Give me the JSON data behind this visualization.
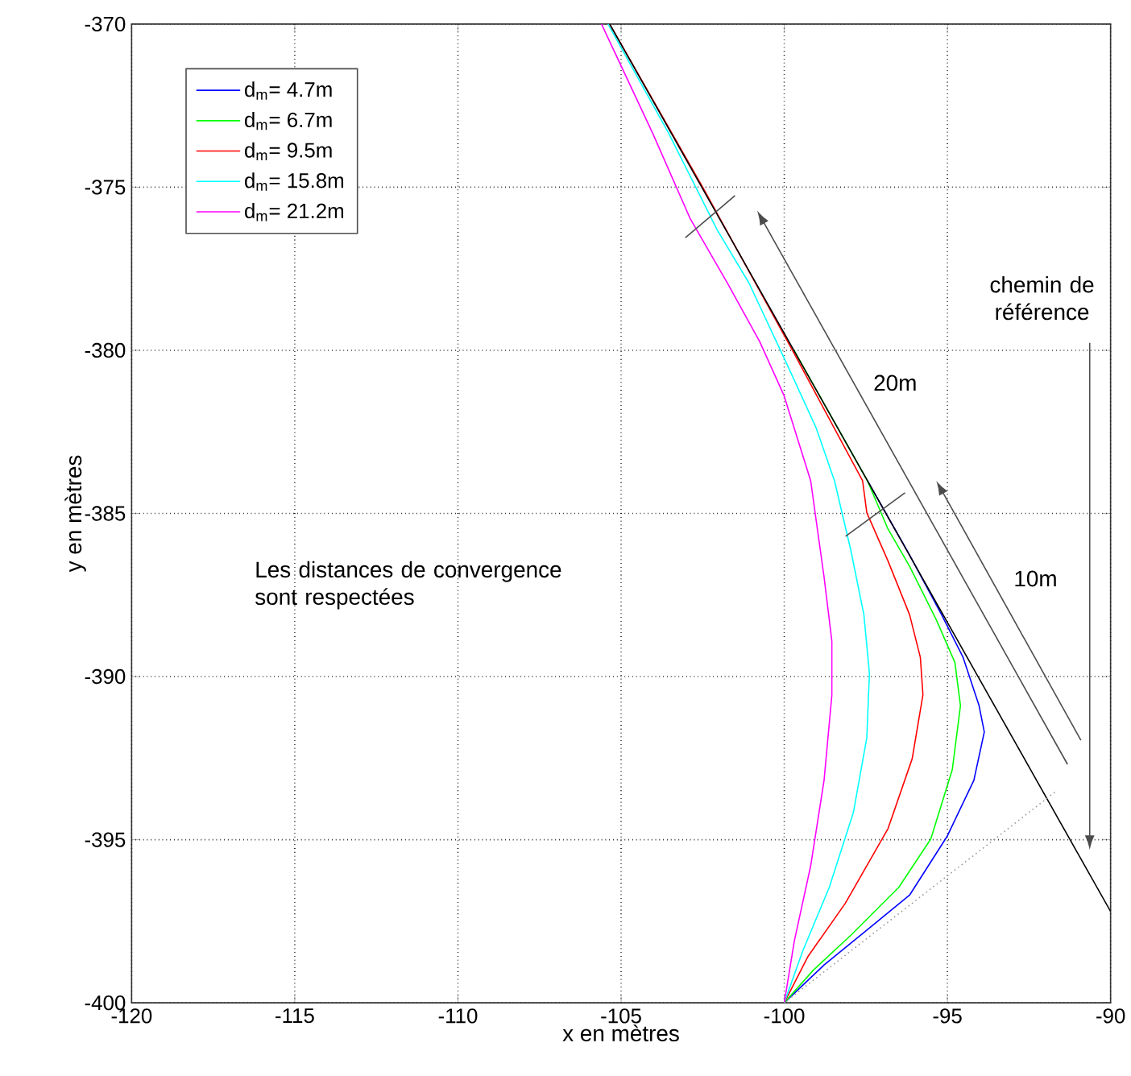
{
  "chart_data": {
    "type": "line",
    "xlabel": "x en mètres",
    "ylabel": "y en mètres",
    "xlim": [
      -120,
      -90
    ],
    "ylim": [
      -400,
      -370
    ],
    "xticks": [
      -120,
      -115,
      -110,
      -105,
      -100,
      -95,
      -90
    ],
    "yticks": [
      -400,
      -395,
      -390,
      -385,
      -380,
      -375,
      -370
    ],
    "grid": true,
    "legend": "top left",
    "annotations": [
      "20m",
      "10m",
      "chemin de référence",
      "Les distances de convergence sont respectées"
    ],
    "series": [
      {
        "name": "d$_{m}$= 4.7m",
        "color": "#0000ff",
        "x": [
          -100,
          -98.78,
          -97.47,
          -96.16,
          -95.01,
          -94.19,
          -93.87,
          -94.03,
          -94.52,
          -95.18,
          -96.2,
          -97.45
        ],
        "values": [
          -400,
          -398.84,
          -397.77,
          -396.7,
          -394.9,
          -393.18,
          -391.7,
          -390.89,
          -389.41,
          -388.1,
          -386.2,
          -384
        ]
      },
      {
        "name": "d$_{m}$= 6.7m",
        "color": "#00ff00",
        "x": [
          -100,
          -99.11,
          -97.96,
          -96.49,
          -95.51,
          -94.85,
          -94.6,
          -94.77,
          -95.34,
          -96.16,
          -96.82,
          -97.45,
          -99.7
        ],
        "values": [
          -400,
          -399.0,
          -397.93,
          -396.46,
          -394.98,
          -392.85,
          -390.89,
          -389.57,
          -388.26,
          -386.62,
          -385.48,
          -384,
          -380
        ]
      },
      {
        "name": "d$_{m}$= 9.5m",
        "color": "#ff0000",
        "x": [
          -100,
          -99.28,
          -98.13,
          -96.82,
          -96.08,
          -95.75,
          -95.83,
          -96.16,
          -96.82,
          -97.47,
          -97.6,
          -99.75,
          -102.5,
          -105.35
        ],
        "values": [
          -400,
          -398.59,
          -396.95,
          -394.66,
          -392.52,
          -390.56,
          -389.41,
          -388.1,
          -386.46,
          -384.98,
          -384,
          -380,
          -375,
          -370
        ]
      },
      {
        "name": "d$_{m}$= 15.8m",
        "color": "#00ffff",
        "x": [
          -100,
          -99.44,
          -98.62,
          -97.88,
          -97.47,
          -97.39,
          -97.56,
          -97.96,
          -98.46,
          -99.03,
          -99.93,
          -101.08,
          -102.06,
          -103.54,
          -105.4
        ],
        "values": [
          -400,
          -398.43,
          -396.46,
          -394.16,
          -391.87,
          -389.9,
          -388.1,
          -386.13,
          -384,
          -382.36,
          -380.4,
          -377.94,
          -376.3,
          -373.35,
          -370
        ]
      },
      {
        "name": "d$_{m}$= 21.2m",
        "color": "#ff00ff",
        "x": [
          -100,
          -99.69,
          -99.19,
          -98.78,
          -98.54,
          -98.54,
          -98.78,
          -99.19,
          -100.01,
          -100.75,
          -101.74,
          -102.88,
          -104.03,
          -105.6
        ],
        "values": [
          -400,
          -398.1,
          -395.8,
          -393.18,
          -390.56,
          -388.92,
          -386.95,
          -384.0,
          -381.38,
          -379.74,
          -377.94,
          -375.97,
          -373.35,
          -370
        ]
      },
      {
        "color": "#000000",
        "x": [
          -105.35,
          -90
        ],
        "values": [
          -370,
          -397.2
        ]
      },
      {
        "color": "#999999",
        "line_style": "dotted",
        "x": [
          -100,
          -91.65
        ],
        "values": [
          -400,
          -393.5
        ]
      }
    ]
  }
}
